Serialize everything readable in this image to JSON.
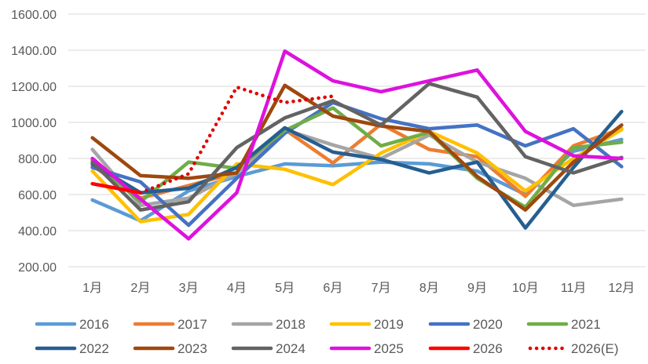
{
  "chart_data": {
    "type": "line",
    "title": "",
    "xlabel": "",
    "ylabel": "",
    "ylim": [
      200,
      1600
    ],
    "yticks": [
      "200.00",
      "400.00",
      "600.00",
      "800.00",
      "1000.00",
      "1200.00",
      "1400.00",
      "1600.00"
    ],
    "categories": [
      "1月",
      "2月",
      "3月",
      "4月",
      "5月",
      "6月",
      "7月",
      "8月",
      "9月",
      "10月",
      "11月",
      "12月"
    ],
    "grid": true,
    "legend_position": "bottom",
    "series": [
      {
        "name": "2016",
        "color": "#5B9BD5",
        "dash": false,
        "values": [
          570,
          455,
          620,
          700,
          770,
          760,
          780,
          770,
          730,
          600,
          840,
          905
        ]
      },
      {
        "name": "2017",
        "color": "#ED7D31",
        "dash": false,
        "values": [
          760,
          580,
          650,
          720,
          960,
          775,
          990,
          850,
          810,
          590,
          870,
          965
        ]
      },
      {
        "name": "2018",
        "color": "#A5A5A5",
        "dash": false,
        "values": [
          850,
          540,
          580,
          720,
          960,
          875,
          800,
          930,
          780,
          690,
          540,
          575
        ]
      },
      {
        "name": "2019",
        "color": "#FFC000",
        "dash": false,
        "values": [
          730,
          450,
          490,
          770,
          740,
          655,
          830,
          950,
          830,
          620,
          800,
          960
        ]
      },
      {
        "name": "2020",
        "color": "#4472C4",
        "dash": false,
        "values": [
          750,
          670,
          430,
          690,
          940,
          1110,
          1020,
          965,
          985,
          870,
          965,
          755
        ]
      },
      {
        "name": "2021",
        "color": "#70AD47",
        "dash": false,
        "values": [
          790,
          560,
          780,
          745,
          955,
          1080,
          870,
          945,
          690,
          530,
          860,
          890
        ]
      },
      {
        "name": "2022",
        "color": "#255E91",
        "dash": false,
        "values": [
          770,
          610,
          635,
          750,
          970,
          835,
          795,
          720,
          780,
          415,
          750,
          1060
        ]
      },
      {
        "name": "2023",
        "color": "#9E480E",
        "dash": false,
        "values": [
          915,
          705,
          690,
          720,
          1205,
          1035,
          980,
          950,
          700,
          515,
          780,
          985
        ]
      },
      {
        "name": "2024",
        "color": "#636363",
        "dash": false,
        "values": [
          780,
          515,
          560,
          860,
          1025,
          1120,
          985,
          1215,
          1140,
          810,
          720,
          805
        ]
      },
      {
        "name": "2025",
        "color": "#DD12DD",
        "dash": false,
        "values": [
          800,
          575,
          355,
          610,
          1395,
          1230,
          1170,
          1230,
          1290,
          950,
          815,
          800
        ]
      },
      {
        "name": "2026",
        "color": "#FF0000",
        "dash": false,
        "values": [
          660,
          610,
          null,
          null,
          null,
          null,
          null,
          null,
          null,
          null,
          null,
          null
        ]
      },
      {
        "name": "2026(E)",
        "color": "#E00000",
        "dash": true,
        "values": [
          null,
          610,
          715,
          1195,
          1110,
          1145,
          null,
          null,
          null,
          null,
          null,
          null
        ]
      }
    ]
  }
}
